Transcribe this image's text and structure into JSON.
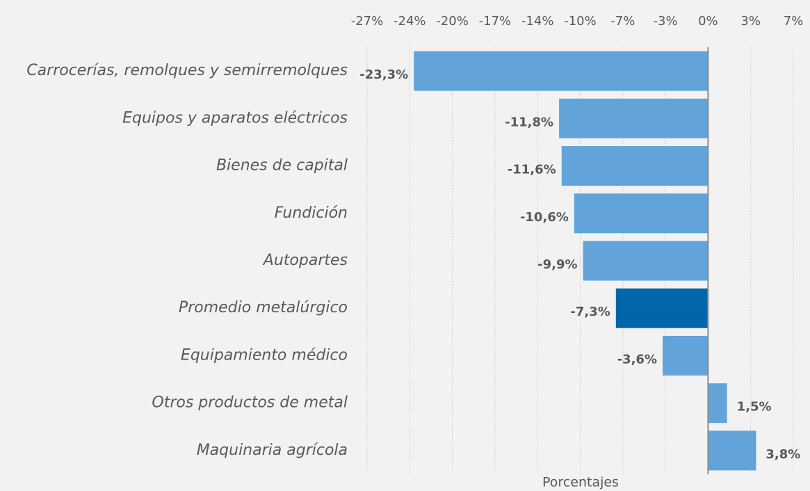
{
  "chart_data": {
    "type": "barh",
    "categories": [
      "Carrocerías, remolques y semirremolques",
      "Equipos y aparatos eléctricos",
      "Bienes de capital",
      "Fundición",
      "Autopartes",
      "Promedio metalúrgico",
      "Equipamiento médico",
      "Otros productos de metal",
      "Maquinaria agrícola"
    ],
    "values": [
      -23.3,
      -11.8,
      -11.6,
      -10.6,
      -9.9,
      -7.3,
      -3.6,
      1.5,
      3.8
    ],
    "value_labels": [
      "-23,3%",
      "-11,8%",
      "-11,6%",
      "-10,6%",
      "-9,9%",
      "-7,3%",
      "-3,6%",
      "1,5%",
      "3,8%"
    ],
    "colors": [
      "#62a3d9",
      "#62a3d9",
      "#62a3d9",
      "#62a3d9",
      "#62a3d9",
      "#0066aa",
      "#62a3d9",
      "#62a3d9",
      "#62a3d9"
    ],
    "xlabel": "Porcentajes",
    "xlim": [
      -27,
      6.75
    ],
    "xticks": [
      {
        "value": -27,
        "label": "-27%"
      },
      {
        "value": -23.625,
        "label": "-24%"
      },
      {
        "value": -20.25,
        "label": "-20%"
      },
      {
        "value": -16.875,
        "label": "-17%"
      },
      {
        "value": -13.5,
        "label": "-14%"
      },
      {
        "value": -10.125,
        "label": "-10%"
      },
      {
        "value": -6.75,
        "label": "-7%"
      },
      {
        "value": -3.375,
        "label": "-3%"
      },
      {
        "value": 0,
        "label": "0%"
      },
      {
        "value": 3.375,
        "label": "3%"
      },
      {
        "value": 6.75,
        "label": "7%"
      }
    ],
    "grid": true
  }
}
